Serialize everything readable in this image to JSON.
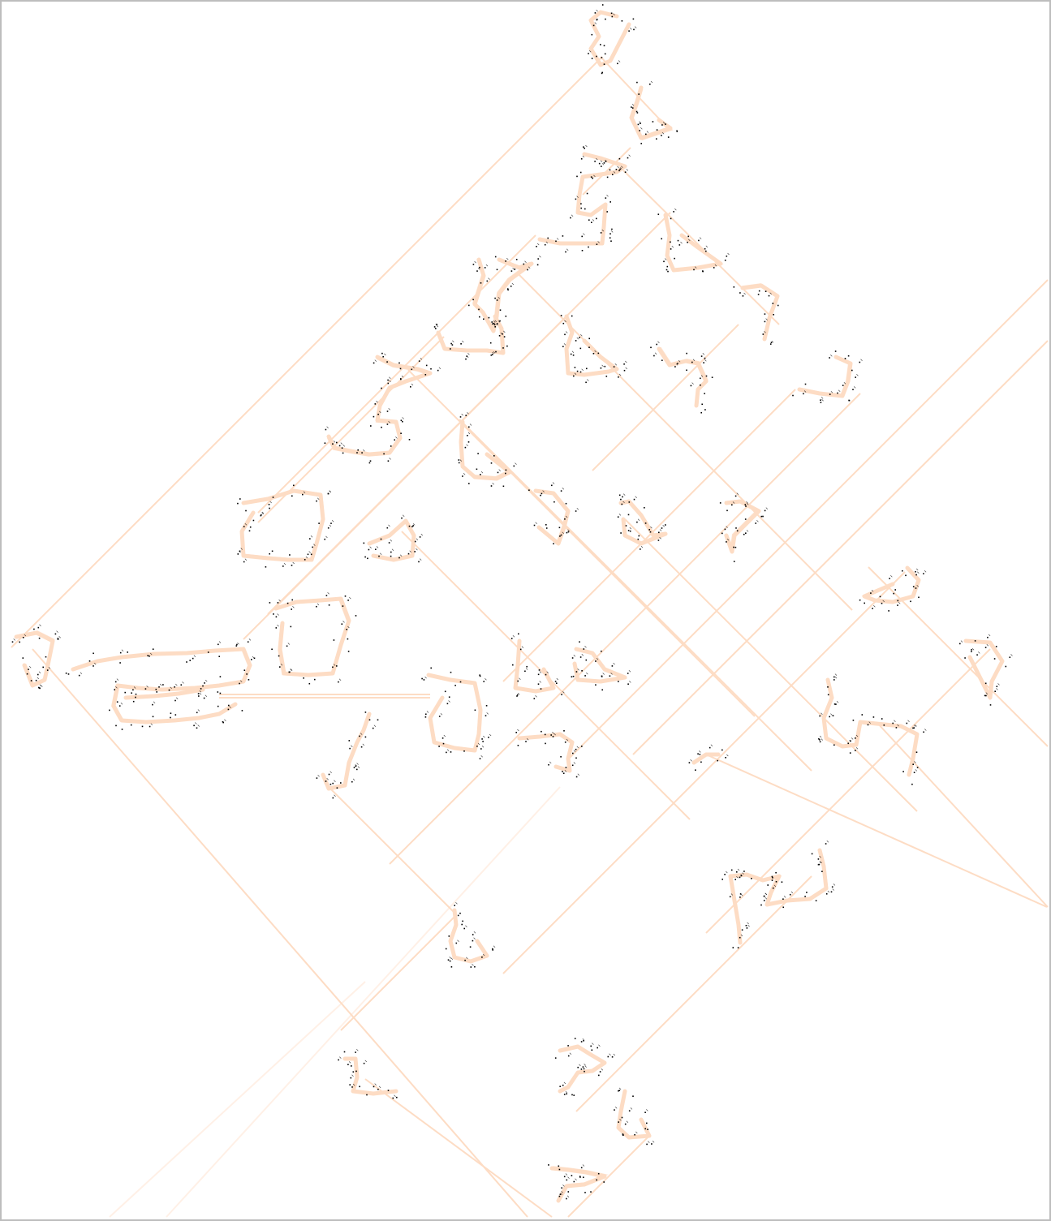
{
  "canvas": {
    "background_color": "#ffffff",
    "border_color": "#bdbdbd",
    "stroke_color": "#fddcc4",
    "faint_stroke_color": "#fff0e6",
    "marker_color": "#000000"
  },
  "diagonal_lines": [
    [
      [
        742,
        70
      ],
      [
        14,
        798
      ]
    ],
    [
      [
        740,
        70
      ],
      [
        825,
        160
      ]
    ],
    [
      [
        777,
        182
      ],
      [
        718,
        240
      ]
    ],
    [
      [
        768,
        210
      ],
      [
        960,
        400
      ]
    ],
    [
      [
        660,
        290
      ],
      [
        318,
        632
      ]
    ],
    [
      [
        637,
        336
      ],
      [
        1050,
        752
      ]
    ],
    [
      [
        547,
        415
      ],
      [
        318,
        644
      ]
    ],
    [
      [
        503,
        456
      ],
      [
        930,
        883
      ]
    ],
    [
      [
        826,
        262
      ],
      [
        330,
        757
      ]
    ],
    [
      [
        700,
        388
      ],
      [
        300,
        788
      ]
    ],
    [
      [
        910,
        400
      ],
      [
        730,
        580
      ]
    ],
    [
      [
        980,
        480
      ],
      [
        620,
        840
      ]
    ],
    [
      [
        1291,
        345
      ],
      [
        700,
        936
      ]
    ],
    [
      [
        1291,
        420
      ],
      [
        780,
        930
      ]
    ],
    [
      [
        1060,
        485
      ],
      [
        480,
        1065
      ]
    ],
    [
      [
        566,
        517
      ],
      [
        1000,
        950
      ]
    ],
    [
      [
        495,
        655
      ],
      [
        850,
        1010
      ]
    ],
    [
      [
        770,
        640
      ],
      [
        1130,
        1000
      ]
    ],
    [
      [
        1115,
        705
      ],
      [
        620,
        1200
      ]
    ],
    [
      [
        1220,
        800
      ],
      [
        870,
        1150
      ]
    ],
    [
      [
        1291,
        920
      ],
      [
        1070,
        699
      ]
    ],
    [
      [
        1080,
        890
      ],
      [
        1291,
        1118
      ]
    ],
    [
      [
        1000,
        1080
      ],
      [
        710,
        1370
      ]
    ],
    [
      [
        40,
        800
      ],
      [
        650,
        1500
      ]
    ],
    [
      [
        400,
        965
      ],
      [
        560,
        1125
      ]
    ],
    [
      [
        870,
        930
      ],
      [
        1290,
        1118
      ]
    ],
    [
      [
        450,
        1330
      ],
      [
        680,
        1500
      ]
    ],
    [
      [
        560,
        1130
      ],
      [
        420,
        1270
      ]
    ],
    [
      [
        800,
        1400
      ],
      [
        700,
        1500
      ]
    ]
  ],
  "faint_lines": [
    [
      [
        450,
        1210
      ],
      [
        135,
        1500
      ]
    ],
    [
      [
        690,
        970
      ],
      [
        205,
        1500
      ]
    ]
  ],
  "horizontal_links": [
    [
      [
        270,
        856
      ],
      [
        530,
        856
      ]
    ],
    [
      [
        270,
        860
      ],
      [
        530,
        860
      ]
    ]
  ],
  "clusters": [
    [
      [
        760,
        20
      ],
      [
        740,
        15
      ],
      [
        728,
        25
      ],
      [
        738,
        45
      ],
      [
        728,
        60
      ],
      [
        740,
        80
      ],
      [
        752,
        75
      ],
      [
        775,
        30
      ]
    ],
    [
      [
        790,
        108
      ],
      [
        785,
        125
      ],
      [
        778,
        145
      ],
      [
        790,
        170
      ],
      [
        805,
        165
      ],
      [
        826,
        158
      ],
      [
        812,
        148
      ]
    ],
    [
      [
        720,
        190
      ],
      [
        740,
        195
      ],
      [
        755,
        200
      ],
      [
        770,
        205
      ],
      [
        760,
        212
      ],
      [
        740,
        215
      ],
      [
        718,
        218
      ],
      [
        714,
        240
      ],
      [
        712,
        262
      ],
      [
        728,
        265
      ],
      [
        746,
        252
      ],
      [
        744,
        280
      ],
      [
        742,
        300
      ],
      [
        718,
        300
      ],
      [
        690,
        300
      ],
      [
        665,
        295
      ]
    ],
    [
      [
        820,
        265
      ],
      [
        825,
        290
      ],
      [
        822,
        315
      ],
      [
        830,
        333
      ],
      [
        860,
        330
      ],
      [
        888,
        325
      ],
      [
        860,
        305
      ],
      [
        840,
        290
      ]
    ],
    [
      [
        915,
        355
      ],
      [
        938,
        352
      ],
      [
        958,
        365
      ],
      [
        948,
        392
      ],
      [
        942,
        418
      ]
    ],
    [
      [
        1030,
        440
      ],
      [
        1048,
        448
      ],
      [
        1045,
        470
      ],
      [
        1038,
        488
      ],
      [
        1010,
        485
      ],
      [
        985,
        480
      ]
    ],
    [
      [
        615,
        320
      ],
      [
        640,
        330
      ],
      [
        655,
        325
      ],
      [
        628,
        345
      ],
      [
        615,
        362
      ],
      [
        612,
        390
      ],
      [
        608,
        408
      ],
      [
        595,
        385
      ],
      [
        585,
        375
      ],
      [
        596,
        340
      ],
      [
        590,
        320
      ]
    ],
    [
      [
        540,
        410
      ],
      [
        548,
        430
      ],
      [
        575,
        432
      ],
      [
        600,
        432
      ],
      [
        620,
        435
      ],
      [
        618,
        405
      ],
      [
        610,
        390
      ]
    ],
    [
      [
        465,
        440
      ],
      [
        485,
        450
      ],
      [
        515,
        455
      ],
      [
        530,
        460
      ],
      [
        500,
        470
      ],
      [
        480,
        478
      ],
      [
        468,
        500
      ],
      [
        465,
        518
      ],
      [
        488,
        520
      ],
      [
        493,
        540
      ],
      [
        480,
        558
      ],
      [
        455,
        560
      ],
      [
        432,
        556
      ],
      [
        412,
        552
      ],
      [
        405,
        538
      ]
    ],
    [
      [
        698,
        390
      ],
      [
        705,
        410
      ],
      [
        698,
        430
      ],
      [
        700,
        460
      ],
      [
        720,
        462
      ],
      [
        750,
        458
      ],
      [
        760,
        455
      ],
      [
        740,
        440
      ],
      [
        720,
        420
      ]
    ],
    [
      [
        812,
        430
      ],
      [
        825,
        450
      ],
      [
        845,
        445
      ],
      [
        860,
        448
      ],
      [
        870,
        470
      ],
      [
        860,
        480
      ],
      [
        858,
        500
      ]
    ],
    [
      [
        570,
        520
      ],
      [
        568,
        545
      ],
      [
        570,
        575
      ],
      [
        585,
        588
      ],
      [
        612,
        590
      ],
      [
        628,
        582
      ],
      [
        600,
        560
      ]
    ],
    [
      [
        660,
        605
      ],
      [
        682,
        608
      ],
      [
        700,
        630
      ],
      [
        695,
        650
      ],
      [
        688,
        670
      ],
      [
        664,
        650
      ]
    ],
    [
      [
        765,
        620
      ],
      [
        775,
        618
      ],
      [
        790,
        635
      ],
      [
        805,
        660
      ],
      [
        820,
        658
      ],
      [
        790,
        670
      ],
      [
        770,
        660
      ],
      [
        768,
        640
      ]
    ],
    [
      [
        895,
        620
      ],
      [
        912,
        618
      ],
      [
        935,
        630
      ],
      [
        920,
        645
      ],
      [
        905,
        660
      ],
      [
        902,
        680
      ],
      [
        895,
        660
      ]
    ],
    [
      [
        1118,
        700
      ],
      [
        1132,
        715
      ],
      [
        1125,
        735
      ],
      [
        1100,
        742
      ],
      [
        1078,
        740
      ],
      [
        1065,
        735
      ],
      [
        1100,
        720
      ]
    ],
    [
      [
        1190,
        790
      ],
      [
        1220,
        792
      ],
      [
        1235,
        815
      ],
      [
        1222,
        840
      ],
      [
        1220,
        860
      ],
      [
        1195,
        810
      ]
    ],
    [
      [
        455,
        670
      ],
      [
        480,
        660
      ],
      [
        500,
        642
      ],
      [
        510,
        660
      ],
      [
        508,
        685
      ],
      [
        485,
        690
      ],
      [
        460,
        685
      ]
    ],
    [
      [
        300,
        620
      ],
      [
        330,
        615
      ],
      [
        362,
        605
      ],
      [
        395,
        610
      ],
      [
        398,
        640
      ],
      [
        390,
        670
      ],
      [
        384,
        690
      ],
      [
        355,
        690
      ],
      [
        330,
        688
      ],
      [
        300,
        685
      ],
      [
        298,
        655
      ],
      [
        312,
        632
      ]
    ],
    [
      [
        340,
        750
      ],
      [
        365,
        742
      ],
      [
        395,
        740
      ],
      [
        420,
        738
      ],
      [
        430,
        765
      ],
      [
        420,
        795
      ],
      [
        410,
        830
      ],
      [
        380,
        832
      ],
      [
        350,
        830
      ],
      [
        345,
        800
      ],
      [
        348,
        768
      ]
    ],
    [
      [
        20,
        785
      ],
      [
        45,
        780
      ],
      [
        65,
        790
      ],
      [
        60,
        815
      ],
      [
        55,
        838
      ],
      [
        40,
        845
      ],
      [
        30,
        820
      ]
    ],
    [
      [
        90,
        825
      ],
      [
        120,
        815
      ],
      [
        150,
        810
      ],
      [
        190,
        806
      ],
      [
        230,
        805
      ],
      [
        265,
        802
      ],
      [
        300,
        800
      ],
      [
        308,
        820
      ],
      [
        300,
        840
      ],
      [
        270,
        845
      ],
      [
        240,
        848
      ],
      [
        200,
        850
      ],
      [
        170,
        848
      ],
      [
        145,
        845
      ],
      [
        140,
        870
      ],
      [
        150,
        888
      ],
      [
        180,
        890
      ],
      [
        215,
        888
      ],
      [
        245,
        885
      ],
      [
        270,
        880
      ],
      [
        290,
        868
      ]
    ],
    [
      [
        155,
        860
      ],
      [
        190,
        858
      ],
      [
        220,
        855
      ],
      [
        250,
        850
      ]
    ],
    [
      [
        528,
        832
      ],
      [
        555,
        838
      ],
      [
        585,
        842
      ],
      [
        592,
        875
      ],
      [
        590,
        905
      ],
      [
        585,
        925
      ],
      [
        560,
        922
      ],
      [
        535,
        915
      ],
      [
        530,
        885
      ],
      [
        545,
        860
      ]
    ],
    [
      [
        640,
        790
      ],
      [
        638,
        820
      ],
      [
        635,
        848
      ],
      [
        660,
        852
      ],
      [
        682,
        848
      ],
      [
        670,
        825
      ]
    ],
    [
      [
        710,
        800
      ],
      [
        730,
        805
      ],
      [
        745,
        825
      ],
      [
        770,
        835
      ],
      [
        740,
        840
      ],
      [
        712,
        838
      ],
      [
        708,
        818
      ]
    ],
    [
      [
        640,
        910
      ],
      [
        665,
        908
      ],
      [
        690,
        905
      ],
      [
        705,
        915
      ],
      [
        700,
        935
      ],
      [
        702,
        950
      ],
      [
        685,
        945
      ]
    ],
    [
      [
        455,
        880
      ],
      [
        448,
        900
      ],
      [
        440,
        915
      ],
      [
        430,
        940
      ],
      [
        425,
        968
      ],
      [
        405,
        972
      ],
      [
        398,
        955
      ]
    ],
    [
      [
        1020,
        838
      ],
      [
        1025,
        860
      ],
      [
        1015,
        885
      ],
      [
        1018,
        910
      ],
      [
        1038,
        920
      ],
      [
        1055,
        918
      ],
      [
        1060,
        890
      ],
      [
        1080,
        892
      ],
      [
        1110,
        895
      ],
      [
        1130,
        905
      ],
      [
        1125,
        935
      ],
      [
        1120,
        955
      ]
    ],
    [
      [
        855,
        940
      ],
      [
        870,
        930
      ],
      [
        885,
        930
      ]
    ],
    [
      [
        900,
        1080
      ],
      [
        920,
        1078
      ],
      [
        940,
        1085
      ],
      [
        960,
        1080
      ],
      [
        950,
        1100
      ],
      [
        945,
        1115
      ],
      [
        970,
        1110
      ],
      [
        998,
        1108
      ],
      [
        1018,
        1095
      ],
      [
        1015,
        1068
      ],
      [
        1010,
        1048
      ]
    ],
    [
      [
        900,
        1080
      ],
      [
        905,
        1110
      ],
      [
        910,
        1140
      ],
      [
        912,
        1162
      ]
    ],
    [
      [
        560,
        1122
      ],
      [
        562,
        1140
      ],
      [
        555,
        1160
      ],
      [
        560,
        1180
      ],
      [
        580,
        1185
      ],
      [
        600,
        1178
      ],
      [
        588,
        1160
      ]
    ],
    [
      [
        425,
        1305
      ],
      [
        438,
        1305
      ],
      [
        440,
        1328
      ],
      [
        435,
        1345
      ],
      [
        460,
        1348
      ],
      [
        488,
        1345
      ]
    ],
    [
      [
        690,
        1295
      ],
      [
        712,
        1290
      ],
      [
        728,
        1300
      ],
      [
        745,
        1310
      ],
      [
        730,
        1320
      ],
      [
        712,
        1322
      ],
      [
        700,
        1340
      ],
      [
        690,
        1345
      ]
    ],
    [
      [
        770,
        1345
      ],
      [
        765,
        1370
      ],
      [
        762,
        1390
      ],
      [
        775,
        1402
      ],
      [
        800,
        1400
      ],
      [
        790,
        1380
      ]
    ],
    [
      [
        680,
        1440
      ],
      [
        700,
        1442
      ],
      [
        722,
        1445
      ],
      [
        745,
        1450
      ],
      [
        720,
        1460
      ],
      [
        698,
        1462
      ],
      [
        688,
        1480
      ]
    ]
  ]
}
